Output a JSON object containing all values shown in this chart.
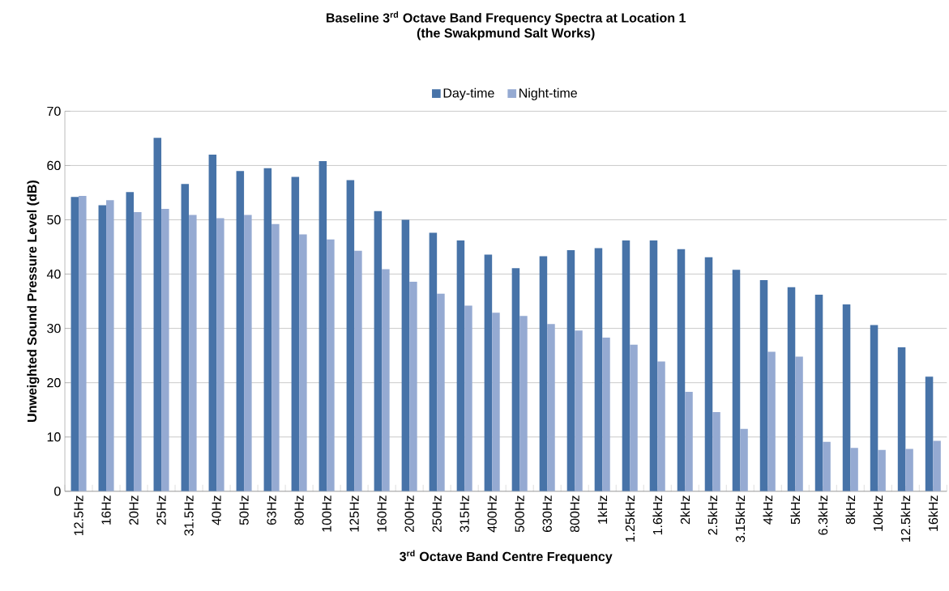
{
  "chart_data": {
    "type": "bar",
    "title": "Baseline 3$^{rd}$ Octave Band Frequency Spectra at Location 1",
    "subtitle": "(the Swakpmund Salt Works)",
    "xlabel": "3$^{rd}$ Octave Band Centre Frequency",
    "ylabel": "Unweighted Sound Pressure Level (dB)",
    "categories": [
      "12.5Hz",
      "16Hz",
      "20Hz",
      "25Hz",
      "31.5Hz",
      "40Hz",
      "50Hz",
      "63Hz",
      "80Hz",
      "100Hz",
      "125Hz",
      "160Hz",
      "200Hz",
      "250Hz",
      "315Hz",
      "400Hz",
      "500Hz",
      "630Hz",
      "800Hz",
      "1kHz",
      "1.25kHz",
      "1.6kHz",
      "2kHz",
      "2.5kHz",
      "3.15kHz",
      "4kHz",
      "5kHz",
      "6.3kHz",
      "8kHz",
      "10kHz",
      "12.5kHz",
      "16kHz"
    ],
    "series": [
      {
        "name": "Day-time",
        "color": "#4773a8",
        "values": [
          54.2,
          52.7,
          55.1,
          65.1,
          56.6,
          62.0,
          59.0,
          59.5,
          57.9,
          60.8,
          57.3,
          51.6,
          50.0,
          47.6,
          46.2,
          43.6,
          41.1,
          43.3,
          44.4,
          44.8,
          46.2,
          46.2,
          44.6,
          43.1,
          40.8,
          38.9,
          37.6,
          36.2,
          34.4,
          30.6,
          26.5,
          21.1
        ]
      },
      {
        "name": "Night-time",
        "color": "#95aad2",
        "values": [
          54.4,
          53.6,
          51.4,
          52.0,
          50.9,
          50.3,
          50.9,
          49.2,
          47.3,
          46.4,
          44.3,
          40.9,
          38.6,
          36.4,
          34.2,
          32.9,
          32.3,
          30.8,
          29.6,
          28.3,
          27.0,
          23.9,
          18.3,
          14.6,
          11.5,
          25.7,
          24.8,
          9.1,
          8.0,
          7.6,
          7.8,
          9.3
        ]
      }
    ],
    "ylim": [
      0,
      70
    ],
    "yticks": [
      0,
      10,
      20,
      30,
      40,
      50,
      60,
      70
    ],
    "grid": "y",
    "legend": "top"
  }
}
